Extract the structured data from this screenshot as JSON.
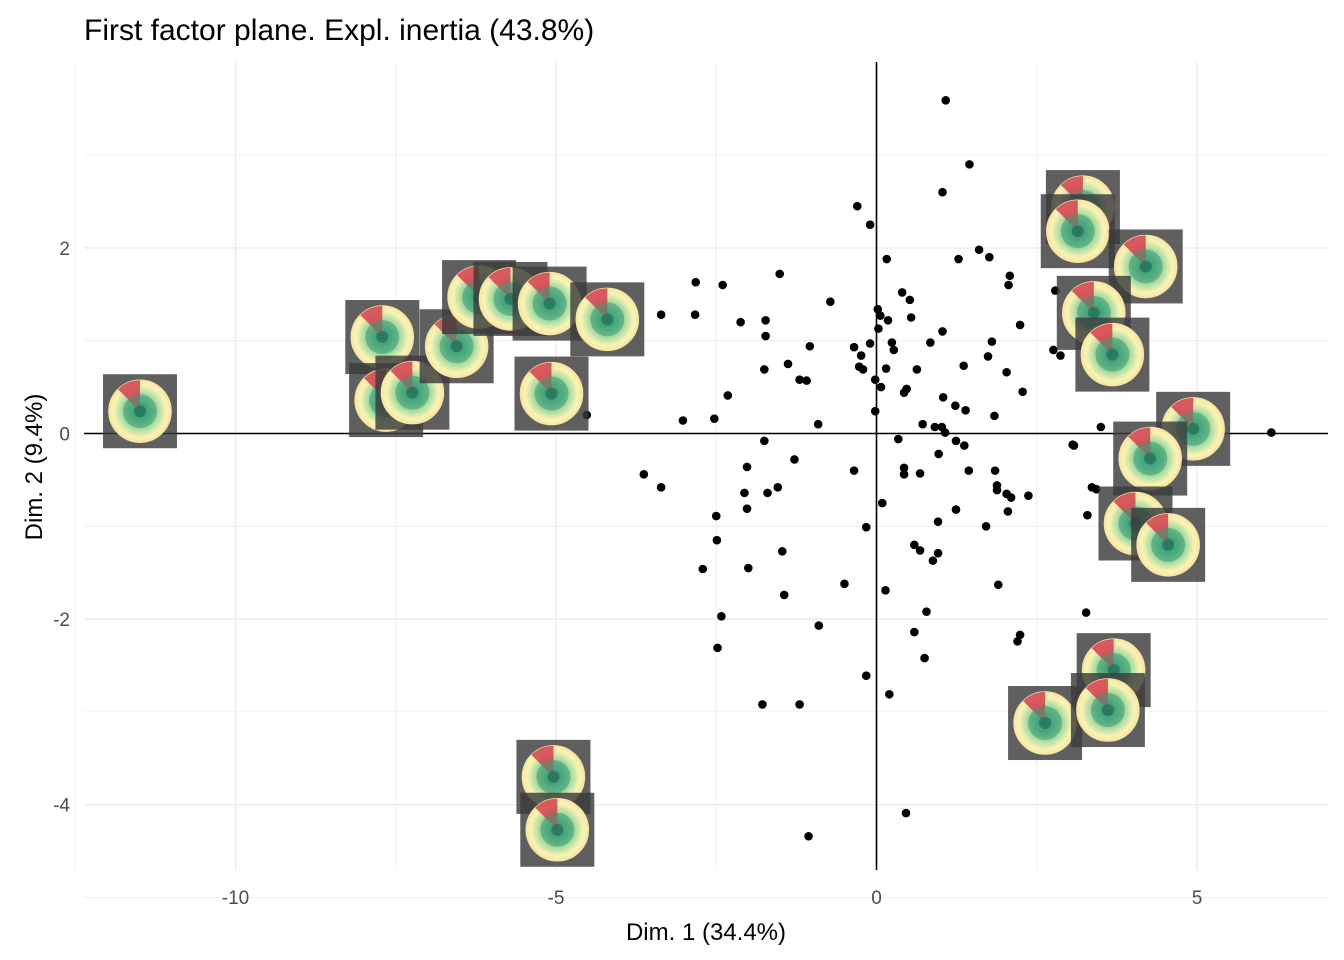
{
  "chart_data": {
    "type": "scatter",
    "title": "First factor plane. Expl. inertia (43.8%)",
    "xlabel": "Dim. 1 (34.4%)",
    "ylabel": "Dim. 2 (9.4%)",
    "xlim": [
      -12.4,
      7.0
    ],
    "ylim": [
      -4.7,
      4.0
    ],
    "x_ticks": [
      -10,
      -5,
      0,
      5
    ],
    "y_ticks": [
      -4,
      -2,
      0,
      2
    ],
    "x_tick_labels": [
      "-10",
      "-5",
      "0",
      "5"
    ],
    "y_tick_labels": [
      "-4",
      "-2",
      "0",
      "2"
    ],
    "grid": true,
    "reference_lines": {
      "x": 0,
      "y": 0
    },
    "colors": {
      "points": "#000000",
      "grid": "#ebebeb",
      "glyph_frame": "#3c3c3c",
      "glyph_yellow": "#fbf3b4",
      "glyph_green": "#6cc08b",
      "glyph_red": "#d53e4f"
    },
    "points": [
      [
        1.08,
        3.59
      ],
      [
        1.45,
        2.9
      ],
      [
        1.03,
        2.6
      ],
      [
        -0.3,
        2.45
      ],
      [
        -0.1,
        2.25
      ],
      [
        1.6,
        1.98
      ],
      [
        1.28,
        1.88
      ],
      [
        1.76,
        1.9
      ],
      [
        0.16,
        1.88
      ],
      [
        2.08,
        1.7
      ],
      [
        2.06,
        1.6
      ],
      [
        -2.82,
        1.63
      ],
      [
        -2.4,
        1.6
      ],
      [
        -1.51,
        1.72
      ],
      [
        0.4,
        1.52
      ],
      [
        0.52,
        1.44
      ],
      [
        -0.72,
        1.42
      ],
      [
        0.02,
        1.34
      ],
      [
        0.06,
        1.27
      ],
      [
        -3.36,
        1.28
      ],
      [
        -2.83,
        1.28
      ],
      [
        0.18,
        1.22
      ],
      [
        -2.12,
        1.2
      ],
      [
        -1.73,
        1.22
      ],
      [
        0.54,
        1.25
      ],
      [
        1.03,
        1.1
      ],
      [
        2.24,
        1.17
      ],
      [
        0.03,
        1.13
      ],
      [
        -1.73,
        1.05
      ],
      [
        -0.1,
        0.97
      ],
      [
        0.24,
        0.98
      ],
      [
        0.84,
        0.98
      ],
      [
        1.8,
        0.99
      ],
      [
        -1.04,
        0.94
      ],
      [
        -0.35,
        0.93
      ],
      [
        0.27,
        0.9
      ],
      [
        -1.38,
        0.75
      ],
      [
        -0.24,
        0.84
      ],
      [
        1.74,
        0.83
      ],
      [
        -1.75,
        0.69
      ],
      [
        -0.27,
        0.72
      ],
      [
        -0.21,
        0.69
      ],
      [
        1.36,
        0.73
      ],
      [
        0.15,
        0.7
      ],
      [
        2.03,
        0.66
      ],
      [
        0.63,
        0.69
      ],
      [
        -1.2,
        0.58
      ],
      [
        -1.09,
        0.57
      ],
      [
        0.47,
        0.48
      ],
      [
        2.28,
        0.45
      ],
      [
        -0.02,
        0.58
      ],
      [
        0.43,
        0.44
      ],
      [
        0.07,
        0.5
      ],
      [
        -2.32,
        0.41
      ],
      [
        1.04,
        0.39
      ],
      [
        1.23,
        0.3
      ],
      [
        1.39,
        0.25
      ],
      [
        -0.02,
        0.24
      ],
      [
        1.84,
        0.19
      ],
      [
        -3.02,
        0.14
      ],
      [
        -2.53,
        0.16
      ],
      [
        -0.91,
        0.1
      ],
      [
        0.72,
        0.1
      ],
      [
        0.91,
        0.07
      ],
      [
        1.02,
        0.07
      ],
      [
        1.07,
        0.01
      ],
      [
        1.24,
        -0.08
      ],
      [
        1.37,
        -0.13
      ],
      [
        0.34,
        -0.06
      ],
      [
        -1.75,
        -0.08
      ],
      [
        -3.63,
        -0.44
      ],
      [
        -2.02,
        -0.36
      ],
      [
        -1.28,
        -0.28
      ],
      [
        0.97,
        -0.22
      ],
      [
        0.43,
        -0.37
      ],
      [
        0.43,
        -0.44
      ],
      [
        0.68,
        -0.43
      ],
      [
        -0.35,
        -0.4
      ],
      [
        1.44,
        -0.4
      ],
      [
        1.85,
        -0.4
      ],
      [
        1.88,
        -0.56
      ],
      [
        1.88,
        -0.61
      ],
      [
        2.03,
        -0.65
      ],
      [
        2.1,
        -0.69
      ],
      [
        2.37,
        -0.67
      ],
      [
        3.06,
        -0.12
      ],
      [
        3.36,
        -0.58
      ],
      [
        3.08,
        -0.13
      ],
      [
        3.43,
        -0.6
      ],
      [
        -3.36,
        -0.58
      ],
      [
        -1.54,
        -0.58
      ],
      [
        -2.06,
        -0.64
      ],
      [
        -1.7,
        -0.64
      ],
      [
        -2.5,
        -0.89
      ],
      [
        0.09,
        -0.75
      ],
      [
        0.96,
        -0.95
      ],
      [
        1.24,
        -0.82
      ],
      [
        2.05,
        -0.84
      ],
      [
        -2.02,
        -0.81
      ],
      [
        -0.16,
        -1.01
      ],
      [
        3.29,
        -0.88
      ],
      [
        1.71,
        -1.0
      ],
      [
        -2.49,
        -1.15
      ],
      [
        -1.47,
        -1.27
      ],
      [
        0.59,
        -1.2
      ],
      [
        0.68,
        -1.26
      ],
      [
        0.96,
        -1.29
      ],
      [
        -2.71,
        -1.46
      ],
      [
        -2.0,
        -1.45
      ],
      [
        0.88,
        -1.37
      ],
      [
        1.9,
        -1.63
      ],
      [
        -0.5,
        -1.62
      ],
      [
        -1.44,
        -1.74
      ],
      [
        0.14,
        -1.69
      ],
      [
        0.78,
        -1.92
      ],
      [
        3.27,
        -1.93
      ],
      [
        -2.42,
        -1.97
      ],
      [
        0.59,
        -2.14
      ],
      [
        -0.9,
        -2.07
      ],
      [
        2.24,
        -2.17
      ],
      [
        2.2,
        -2.24
      ],
      [
        -2.48,
        -2.31
      ],
      [
        0.75,
        -2.42
      ],
      [
        -0.16,
        -2.61
      ],
      [
        0.2,
        -2.81
      ],
      [
        -1.78,
        -2.92
      ],
      [
        -1.2,
        -2.92
      ],
      [
        0.46,
        -4.09
      ],
      [
        -1.06,
        -4.34
      ],
      [
        -7.71,
        0.7
      ],
      [
        -4.52,
        0.2
      ],
      [
        -5.18,
        1.1
      ],
      [
        3.23,
        2.2
      ],
      [
        2.79,
        1.54
      ],
      [
        2.76,
        0.9
      ],
      [
        2.87,
        0.84
      ],
      [
        3.5,
        0.07
      ],
      [
        6.16,
        0.01
      ]
    ],
    "glyphs": [
      [
        -11.49,
        0.24
      ],
      [
        -7.71,
        1.04
      ],
      [
        -7.65,
        0.36
      ],
      [
        -7.24,
        0.44
      ],
      [
        -6.55,
        0.94
      ],
      [
        -6.2,
        1.47
      ],
      [
        -5.71,
        1.45
      ],
      [
        -5.1,
        1.4
      ],
      [
        -4.2,
        1.23
      ],
      [
        -5.07,
        0.43
      ],
      [
        -5.04,
        -3.7
      ],
      [
        -4.98,
        -4.27
      ],
      [
        3.22,
        2.44
      ],
      [
        3.14,
        2.18
      ],
      [
        4.2,
        1.8
      ],
      [
        3.39,
        1.3
      ],
      [
        3.68,
        0.85
      ],
      [
        4.94,
        0.05
      ],
      [
        4.27,
        -0.27
      ],
      [
        4.04,
        -0.97
      ],
      [
        4.55,
        -1.2
      ],
      [
        3.7,
        -2.55
      ],
      [
        2.63,
        -3.12
      ],
      [
        3.61,
        -2.98
      ]
    ]
  }
}
